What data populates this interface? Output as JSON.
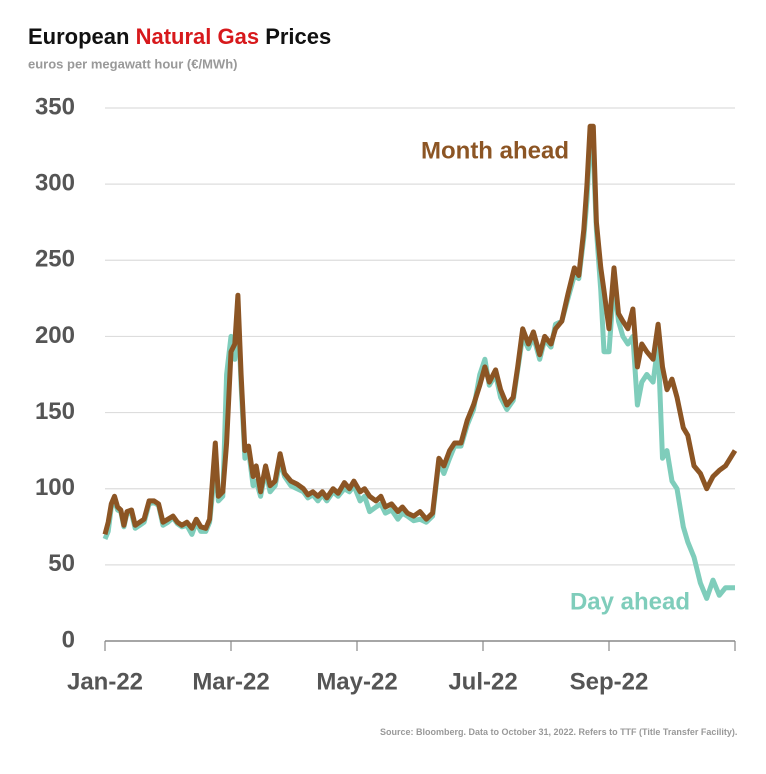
{
  "chart_data": {
    "type": "line",
    "title": [
      {
        "text": "European ",
        "color": "#111111"
      },
      {
        "text": "Natural Gas",
        "color": "#d7191c"
      },
      {
        "text": " Prices",
        "color": "#111111"
      }
    ],
    "subtitle": "euros per megawatt hour (€/MWh)",
    "source": "Source: Bloomberg. Data to October 31, 2022. Refers to TTF (Title Transfer Facility).",
    "xlim": [
      0,
      10
    ],
    "xticks": [
      {
        "value": 0,
        "label": "Jan-22"
      },
      {
        "value": 2,
        "label": "Mar-22"
      },
      {
        "value": 4,
        "label": "May-22"
      },
      {
        "value": 6,
        "label": "Jul-22"
      },
      {
        "value": 8,
        "label": "Sep-22"
      },
      {
        "value": 10,
        "label": ""
      }
    ],
    "ylim": [
      0,
      350
    ],
    "yticks": [
      0,
      50,
      100,
      150,
      200,
      250,
      300,
      350
    ],
    "grid": true,
    "x": [
      0,
      0.05,
      0.1,
      0.15,
      0.2,
      0.25,
      0.3,
      0.35,
      0.42,
      0.48,
      0.55,
      0.62,
      0.7,
      0.78,
      0.85,
      0.92,
      1,
      1.08,
      1.15,
      1.22,
      1.3,
      1.38,
      1.45,
      1.52,
      1.6,
      1.66,
      1.75,
      1.8,
      1.87,
      1.93,
      2,
      2.06,
      2.11,
      2.16,
      2.22,
      2.28,
      2.35,
      2.4,
      2.47,
      2.55,
      2.62,
      2.7,
      2.78,
      2.85,
      2.95,
      3.05,
      3.15,
      3.22,
      3.3,
      3.38,
      3.45,
      3.52,
      3.62,
      3.7,
      3.8,
      3.88,
      3.95,
      4.05,
      4.12,
      4.2,
      4.3,
      4.38,
      4.45,
      4.55,
      4.65,
      4.72,
      4.8,
      4.9,
      5,
      5.1,
      5.2,
      5.3,
      5.38,
      5.47,
      5.55,
      5.65,
      5.75,
      5.85,
      5.95,
      6.03,
      6.1,
      6.2,
      6.28,
      6.38,
      6.48,
      6.55,
      6.63,
      6.72,
      6.8,
      6.9,
      6.98,
      7.08,
      7.15,
      7.25,
      7.35,
      7.45,
      7.52,
      7.6,
      7.65,
      7.7,
      7.75,
      7.8,
      7.87,
      7.92,
      8,
      8.08,
      8.15,
      8.22,
      8.3,
      8.38,
      8.45,
      8.52,
      8.6,
      8.7,
      8.78,
      8.85,
      8.92,
      9,
      9.08,
      9.18,
      9.25,
      9.35,
      9.45,
      9.55,
      9.65,
      9.75,
      9.85,
      10
    ],
    "series": [
      {
        "name": "Day ahead",
        "color": "#7fcdbb",
        "values": [
          67,
          72,
          88,
          92,
          86,
          85,
          75,
          84,
          84,
          74,
          76,
          78,
          90,
          91,
          89,
          76,
          78,
          81,
          77,
          75,
          76,
          70,
          78,
          72,
          72,
          78,
          115,
          92,
          95,
          175,
          200,
          185,
          220,
          168,
          120,
          125,
          102,
          105,
          95,
          112,
          98,
          102,
          118,
          108,
          102,
          100,
          98,
          94,
          96,
          92,
          96,
          92,
          98,
          95,
          100,
          98,
          102,
          92,
          95,
          85,
          88,
          90,
          84,
          86,
          80,
          84,
          82,
          79,
          80,
          78,
          82,
          118,
          110,
          120,
          128,
          128,
          142,
          152,
          175,
          185,
          168,
          175,
          160,
          152,
          158,
          178,
          200,
          192,
          200,
          185,
          198,
          193,
          208,
          210,
          225,
          240,
          238,
          265,
          290,
          330,
          320,
          270,
          230,
          190,
          190,
          235,
          210,
          200,
          195,
          200,
          155,
          170,
          175,
          170,
          195,
          120,
          125,
          105,
          100,
          75,
          65,
          55,
          38,
          28,
          40,
          30,
          35,
          35
        ]
      },
      {
        "name": "Month ahead",
        "color": "#8c5524",
        "values": [
          70,
          78,
          90,
          95,
          88,
          86,
          76,
          85,
          86,
          76,
          78,
          80,
          92,
          92,
          90,
          78,
          80,
          82,
          78,
          76,
          78,
          74,
          80,
          75,
          74,
          80,
          130,
          95,
          98,
          130,
          190,
          195,
          227,
          175,
          125,
          128,
          108,
          115,
          98,
          115,
          102,
          105,
          123,
          110,
          105,
          103,
          100,
          96,
          98,
          95,
          98,
          94,
          100,
          97,
          104,
          100,
          105,
          98,
          100,
          95,
          92,
          95,
          88,
          90,
          85,
          88,
          84,
          82,
          85,
          80,
          84,
          120,
          115,
          125,
          130,
          130,
          145,
          155,
          168,
          180,
          170,
          178,
          165,
          155,
          160,
          180,
          205,
          195,
          203,
          188,
          200,
          195,
          205,
          210,
          228,
          245,
          240,
          270,
          300,
          338,
          338,
          275,
          245,
          230,
          205,
          245,
          215,
          210,
          205,
          218,
          180,
          195,
          190,
          185,
          208,
          180,
          165,
          172,
          160,
          140,
          135,
          115,
          110,
          100,
          108,
          112,
          115,
          125
        ]
      }
    ]
  }
}
